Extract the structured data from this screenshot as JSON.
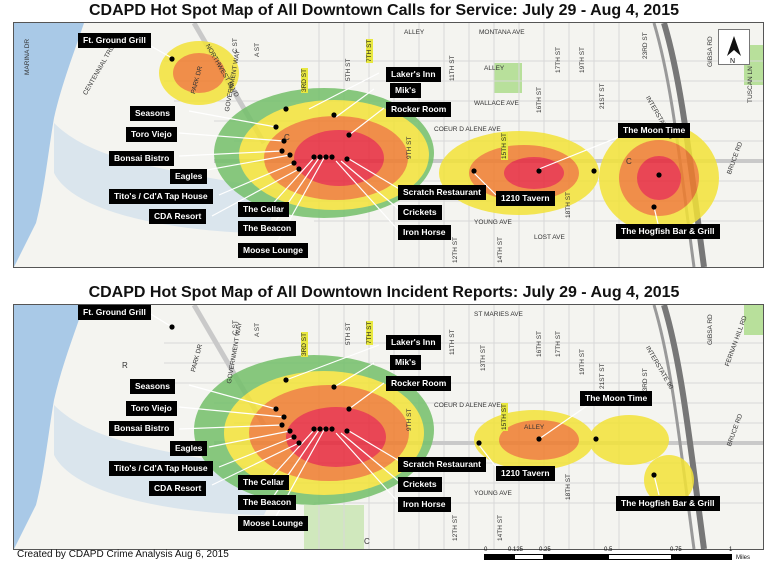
{
  "maps": [
    {
      "title": "CDAPD Hot Spot Map of All Downtown Calls for Service: July 29 - Aug 4, 2015",
      "labels": {
        "ft_ground_grill": "Ft. Ground Grill",
        "lakers_inn": "Laker's Inn",
        "miks": "Mik's",
        "rocker_room": "Rocker Room",
        "seasons": "Seasons",
        "toro_viejo": "Toro Viejo",
        "bonsai_bistro": "Bonsai Bistro",
        "eagles": "Eagles",
        "titos": "Tito's  / Cd'A Tap House",
        "cda_resort": "CDA Resort",
        "the_cellar": "The Cellar",
        "the_beacon": "The Beacon",
        "moose_lounge": "Moose Lounge",
        "scratch_restaurant": "Scratch Restaurant",
        "crickets": "Crickets",
        "iron_horse": "Iron Horse",
        "tavern_1210": "1210 Tavern",
        "moon_time": "The Moon Time",
        "hogfish": "The Hogfish Bar & Grill"
      },
      "streets": {
        "alley1": "ALLEY",
        "montana": "MONTANA AVE",
        "alley2": "ALLEY",
        "wallace": "WALLACE AVE",
        "coeur": "COEUR D ALENE AVE",
        "young": "YOUNG AVE",
        "lost": "LOST AVE",
        "marina": "MARINA DR",
        "centennial": "CENTENNIAL TRL",
        "park": "PARK DR",
        "northwest": "NORTHWEST BLVD",
        "government": "GOVERNMENT WAY",
        "third": "3RD ST",
        "fifth": "5TH ST",
        "seventh": "7TH ST",
        "ninth": "9TH ST",
        "eleventh": "11TH ST",
        "fifteenth": "15TH ST",
        "sixteenth": "16TH ST",
        "seventeenth": "17TH ST",
        "nineteenth": "19TH ST",
        "twentyfirst": "21ST ST",
        "twentythird": "23RD ST",
        "twelfth": "12TH ST",
        "fourteenth": "14TH ST",
        "eighteenth": "18TH ST",
        "bruce": "BRUCE RD",
        "tuscan": "TUSCAN LN",
        "gibsa": "GIBSA RD",
        "interstate": "INTERSTATE 90",
        "cst": "C ST",
        "ast": "A ST",
        "c_mark": "C",
        "c_mark2": "C"
      },
      "legend_colors": {
        "high": "#e8283a",
        "mid": "#f07d2e",
        "low": "#f3e338",
        "lowest": "#74c06a",
        "water": "#a9c9e7",
        "park": "#b8e09b"
      }
    },
    {
      "title": "CDAPD Hot Spot Map of All Downtown Incident Reports: July 29 - Aug 4, 2015",
      "labels": {
        "ft_ground_grill": "Ft. Ground Grill",
        "lakers_inn": "Laker's Inn",
        "miks": "Mik's",
        "rocker_room": "Rocker Room",
        "seasons": "Seasons",
        "toro_viejo": "Toro Viejo",
        "bonsai_bistro": "Bonsai Bistro",
        "eagles": "Eagles",
        "titos": "Tito's  / Cd'A Tap House",
        "cda_resort": "CDA Resort",
        "the_cellar": "The Cellar",
        "the_beacon": "The Beacon",
        "moose_lounge": "Moose Lounge",
        "scratch_restaurant": "Scratch Restaurant",
        "crickets": "Crickets",
        "iron_horse": "Iron Horse",
        "tavern_1210": "1210 Tavern",
        "moon_time": "The Moon Time",
        "hogfish": "The Hogfish Bar & Grill"
      },
      "streets": {
        "stmaries": "ST MARIES AVE",
        "coeur": "COEUR D ALENE AVE",
        "alley": "ALLEY",
        "young": "YOUNG AVE",
        "fernan": "FERNAN HILL RD",
        "gibsa": "GIBSA RD",
        "bruce": "BRUCE RD",
        "interstate": "INTERSTATE 90",
        "government": "GOVERNMENT WAY",
        "third": "3RD ST",
        "fifth": "5TH ST",
        "seventh": "7TH ST",
        "ninth": "9TH ST",
        "eleventh": "11TH ST",
        "thirteenth": "13TH ST",
        "fifteenth": "15TH ST",
        "sixteenth": "16TH ST",
        "seventeenth": "17TH ST",
        "nineteenth": "19TH ST",
        "twentyfirst": "21ST ST",
        "twentythird": "23RD ST",
        "twelfth": "12TH ST",
        "fourteenth": "14TH ST",
        "eighteenth": "18TH ST",
        "park": "PARK DR",
        "cst": "C ST",
        "ast": "A ST",
        "r_mark": "R",
        "c_mark": "C"
      }
    }
  ],
  "footer": "Created by CDAPD Crime Analysis Aug 6, 2015",
  "scale": {
    "ticks": [
      "0",
      "0.125",
      "0.25",
      "0.5",
      "0.75",
      "1"
    ],
    "unit": "Miles"
  }
}
